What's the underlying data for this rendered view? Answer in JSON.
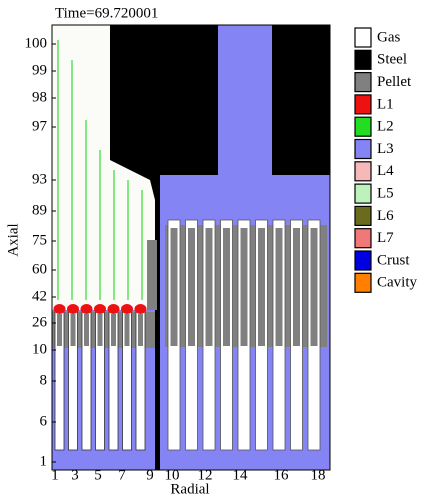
{
  "title": "Time=69.720001",
  "axes": {
    "y_label": "Axial",
    "x_label": "Radial",
    "y_ticks": [
      100,
      99,
      98,
      97,
      93,
      89,
      75,
      60,
      42,
      26,
      10,
      8,
      6,
      1
    ],
    "x_ticks": [
      1,
      3,
      5,
      7,
      9,
      10,
      12,
      14,
      16,
      18
    ]
  },
  "legend": [
    {
      "label": "Gas",
      "color": "#ffffff"
    },
    {
      "label": "Steel",
      "color": "#000000"
    },
    {
      "label": "Pellet",
      "color": "#808080"
    },
    {
      "label": "L1",
      "color": "#ee1111"
    },
    {
      "label": "L2",
      "color": "#22dd22"
    },
    {
      "label": "L3",
      "color": "#8484f4"
    },
    {
      "label": "L4",
      "color": "#f6b8b8"
    },
    {
      "label": "L5",
      "color": "#bdf2bd"
    },
    {
      "label": "L6",
      "color": "#6b6b1e"
    },
    {
      "label": "L7",
      "color": "#f07878"
    },
    {
      "label": "Crust",
      "color": "#0000e0"
    },
    {
      "label": "Cavity",
      "color": "#ff8000"
    }
  ]
}
